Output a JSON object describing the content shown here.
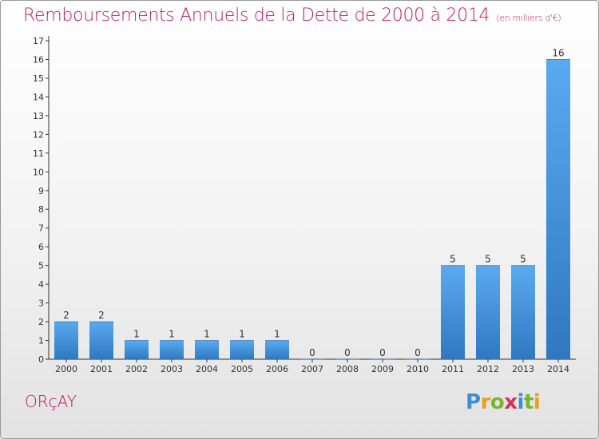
{
  "header": {
    "title": "Remboursements Annuels de la Dette de 2000 à 2014",
    "subtitle": "(en milliers d'€)"
  },
  "footer": {
    "town": "ORçAY",
    "logo_letters": [
      {
        "char": "P",
        "color": "#3a8fd6"
      },
      {
        "char": "r",
        "color": "#e8a21a"
      },
      {
        "char": "o",
        "color": "#7ab52e"
      },
      {
        "char": "x",
        "color": "#d4304f"
      },
      {
        "char": "i",
        "color": "#3a8fd6"
      },
      {
        "char": "t",
        "color": "#7ab52e"
      },
      {
        "char": "i",
        "color": "#e8a21a"
      }
    ]
  },
  "chart_data": {
    "type": "bar",
    "title": "Remboursements Annuels de la Dette de 2000 à 2014",
    "subtitle": "(en milliers d'€)",
    "categories": [
      "2000",
      "2001",
      "2002",
      "2003",
      "2004",
      "2005",
      "2006",
      "2007",
      "2008",
      "2009",
      "2010",
      "2011",
      "2012",
      "2013",
      "2014"
    ],
    "values": [
      2,
      2,
      1,
      1,
      1,
      1,
      1,
      0,
      0,
      0,
      0,
      5,
      5,
      5,
      16
    ],
    "y_ticks": [
      0,
      1,
      2,
      3,
      4,
      5,
      6,
      7,
      8,
      9,
      10,
      11,
      12,
      13,
      14,
      15,
      16,
      17
    ],
    "ylim": [
      0,
      17
    ],
    "grid": false,
    "colors": {
      "bar_light": "#5aaaf0",
      "bar_dark": "#2f78c0",
      "axis": "#333333",
      "text": "#333333"
    }
  }
}
